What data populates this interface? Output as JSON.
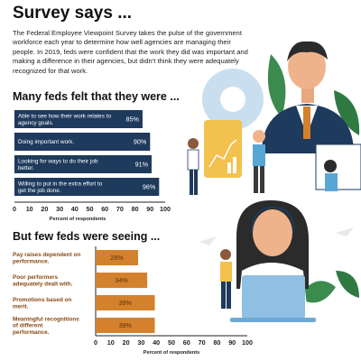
{
  "header": {
    "title": "Survey says ...",
    "intro": "The Federal Employee Viewpoint Survey takes the pulse of the government workforce each year to determine how well agencies are managing their people. In 2019, feds were confident that the work they did was important and making a difference in their agencies, but didn't think they were adequately recognized for that work."
  },
  "colors": {
    "navy": "#1e3a5c",
    "orange": "#d4812e",
    "skyblue": "#58a6d4",
    "green": "#3b8a4e",
    "gold": "#f2c14e"
  },
  "illustration": {
    "icons": [
      "businessman-icon",
      "gear-icon",
      "presentation-board-icon",
      "laptop-icon",
      "headset-operator-icon",
      "paper-plane-icon",
      "leaf-icon"
    ]
  },
  "chart_data": [
    {
      "type": "bar",
      "orientation": "horizontal",
      "title": "Many feds felt that they were ...",
      "xlabel": "Percent of respondents",
      "xlim": [
        0,
        100
      ],
      "xticks": [
        0,
        10,
        20,
        30,
        40,
        50,
        60,
        70,
        80,
        90,
        100
      ],
      "categories": [
        "Able to see how their work relates to agency goals.",
        "Doing important work.",
        "Looking for ways to do their job better.",
        "Willing to put in the extra effort to get the job done."
      ],
      "values": [
        85,
        90,
        91,
        96
      ],
      "value_labels": [
        "85%",
        "90%",
        "91%",
        "96%"
      ],
      "color": "#1e3a5c",
      "grid": false
    },
    {
      "type": "bar",
      "orientation": "horizontal",
      "title": "But few feds were seeing ...",
      "xlabel": "Percent of respondents",
      "xlim": [
        0,
        100
      ],
      "xticks": [
        0,
        10,
        20,
        30,
        40,
        50,
        60,
        70,
        80,
        90,
        100
      ],
      "categories": [
        "Pay raises dependent on performance.",
        "Poor performers adequately dealt with.",
        "Promotions based on merit.",
        "Meaningful recognitions of different performance."
      ],
      "values": [
        28,
        34,
        39,
        39
      ],
      "value_labels": [
        "28%",
        "34%",
        "39%",
        "39%"
      ],
      "color": "#d4812e",
      "grid": false
    }
  ]
}
